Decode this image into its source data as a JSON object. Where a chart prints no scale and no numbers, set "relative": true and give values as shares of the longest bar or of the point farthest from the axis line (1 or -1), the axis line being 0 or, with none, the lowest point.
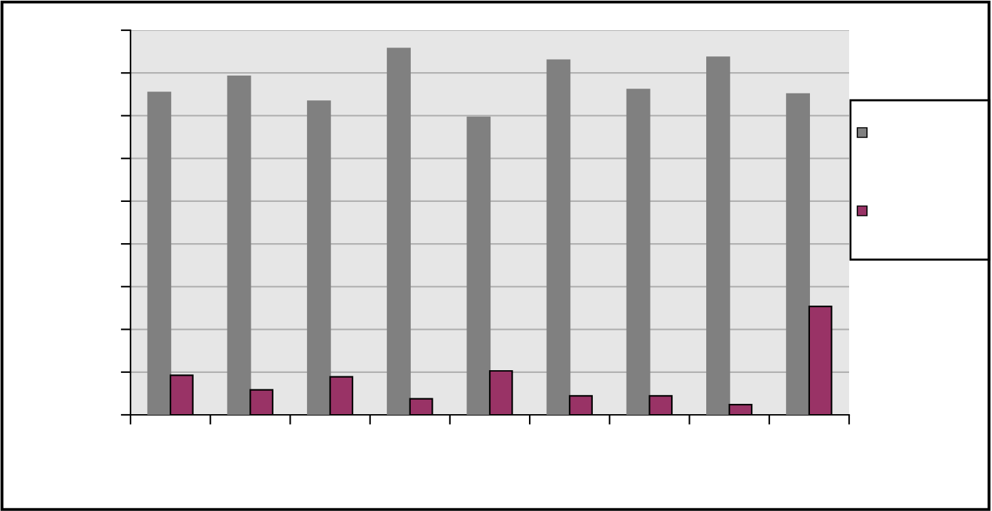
{
  "chart_data": {
    "type": "bar",
    "relative": true,
    "categories": [
      null,
      null,
      null,
      null,
      null,
      null,
      null,
      null,
      null
    ],
    "series": [
      {
        "color": "#808080",
        "values": [
          0.88,
          0.924,
          0.856,
          1,
          0.812,
          0.968,
          0.888,
          0.976,
          0.876
        ]
      },
      {
        "color": "#993366",
        "values": [
          0.108,
          0.068,
          0.104,
          0.044,
          0.12,
          0.052,
          0.052,
          0.028,
          0.296
        ]
      }
    ],
    "grid": "y"
  }
}
